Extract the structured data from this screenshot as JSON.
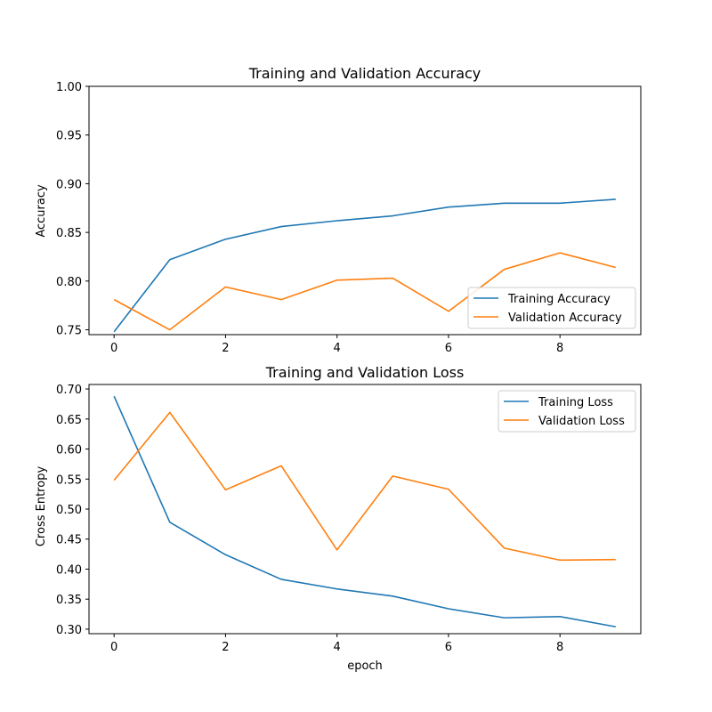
{
  "chart_data": [
    {
      "type": "line",
      "title": "Training and Validation Accuracy",
      "xlabel": "",
      "ylabel": "Accuracy",
      "xlim": [
        -0.45,
        9.45
      ],
      "ylim": [
        0.745,
        1.0
      ],
      "xticks": [
        0,
        2,
        4,
        6,
        8
      ],
      "yticks": [
        0.75,
        0.8,
        0.85,
        0.9,
        0.95,
        1.0
      ],
      "ytick_labels": [
        "0.75",
        "0.80",
        "0.85",
        "0.90",
        "0.95",
        "1.00"
      ],
      "legend_position": "lower-right",
      "x": [
        0,
        1,
        2,
        3,
        4,
        5,
        6,
        7,
        8,
        9
      ],
      "series": [
        {
          "name": "Training Accuracy",
          "color": "#1f77b4",
          "values": [
            0.748,
            0.822,
            0.843,
            0.856,
            0.862,
            0.867,
            0.876,
            0.88,
            0.88,
            0.884
          ]
        },
        {
          "name": "Validation Accuracy",
          "color": "#ff7f0e",
          "values": [
            0.781,
            0.75,
            0.794,
            0.781,
            0.801,
            0.803,
            0.769,
            0.812,
            0.829,
            0.814
          ]
        }
      ]
    },
    {
      "type": "line",
      "title": "Training and Validation Loss",
      "xlabel": "epoch",
      "ylabel": "Cross Entropy",
      "xlim": [
        -0.45,
        9.45
      ],
      "ylim": [
        0.2925,
        0.7075
      ],
      "xticks": [
        0,
        2,
        4,
        6,
        8
      ],
      "yticks": [
        0.3,
        0.35,
        0.4,
        0.45,
        0.5,
        0.55,
        0.6,
        0.65,
        0.7
      ],
      "ytick_labels": [
        "0.30",
        "0.35",
        "0.40",
        "0.45",
        "0.50",
        "0.55",
        "0.60",
        "0.65",
        "0.70"
      ],
      "legend_position": "upper-right",
      "x": [
        0,
        1,
        2,
        3,
        4,
        5,
        6,
        7,
        8,
        9
      ],
      "series": [
        {
          "name": "Training Loss",
          "color": "#1f77b4",
          "values": [
            0.688,
            0.478,
            0.424,
            0.383,
            0.367,
            0.355,
            0.334,
            0.319,
            0.321,
            0.304
          ]
        },
        {
          "name": "Validation Loss",
          "color": "#ff7f0e",
          "values": [
            0.548,
            0.661,
            0.532,
            0.572,
            0.432,
            0.555,
            0.533,
            0.435,
            0.415,
            0.416
          ]
        }
      ]
    }
  ]
}
